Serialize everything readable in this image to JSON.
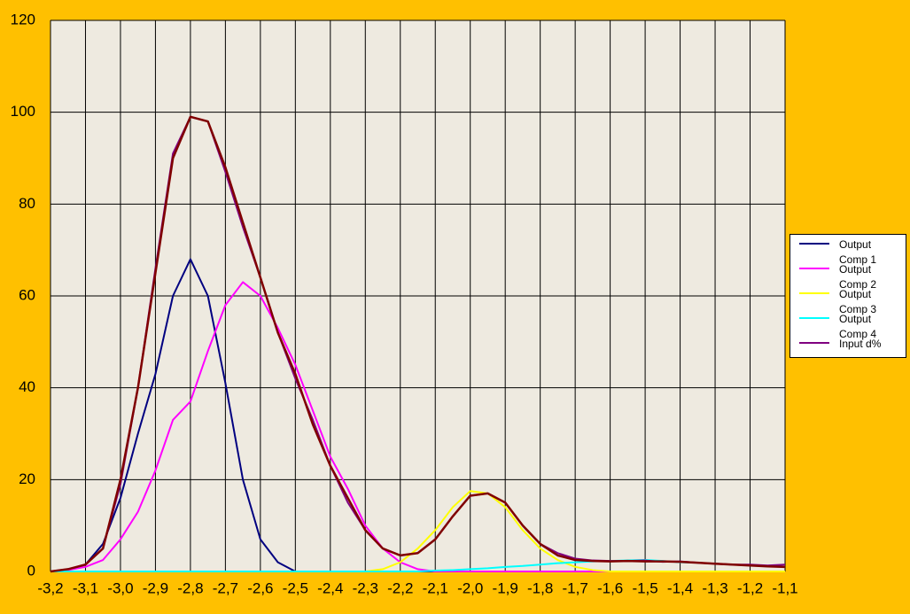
{
  "chart_data": {
    "type": "line",
    "x": [
      -3.2,
      -3.15,
      -3.1,
      -3.05,
      -3.0,
      -2.95,
      -2.9,
      -2.85,
      -2.8,
      -2.75,
      -2.7,
      -2.65,
      -2.6,
      -2.55,
      -2.5,
      -2.45,
      -2.4,
      -2.35,
      -2.3,
      -2.25,
      -2.2,
      -2.15,
      -2.1,
      -2.05,
      -2.0,
      -1.95,
      -1.9,
      -1.85,
      -1.8,
      -1.75,
      -1.7,
      -1.65,
      -1.6,
      -1.55,
      -1.5,
      -1.45,
      -1.4,
      -1.35,
      -1.3,
      -1.25,
      -1.2,
      -1.15,
      -1.1
    ],
    "series": [
      {
        "name": "Output Comp 1",
        "color": "#000080",
        "values": [
          0,
          0.3,
          1.5,
          6,
          16,
          30,
          43,
          60,
          68,
          60,
          41,
          20,
          7,
          2,
          0,
          0,
          0,
          0,
          0,
          0,
          0,
          0,
          0,
          0,
          0,
          0,
          0,
          0,
          0,
          0,
          0,
          0,
          0,
          0,
          0,
          0,
          0,
          0,
          0,
          0,
          0,
          0,
          0
        ]
      },
      {
        "name": "Output Comp 2",
        "color": "#ff00ff",
        "values": [
          0,
          0.3,
          1,
          2.5,
          7,
          13,
          22,
          33,
          37,
          48,
          58,
          63,
          60,
          53,
          45,
          35,
          25,
          18,
          10,
          5,
          2,
          0.5,
          0,
          0,
          0,
          0,
          0,
          0,
          0,
          0,
          0,
          0,
          0,
          0,
          0,
          0,
          0,
          0,
          0,
          0,
          0,
          0,
          0
        ]
      },
      {
        "name": "Output Comp 3",
        "color": "#ffff00",
        "values": [
          0,
          0,
          0,
          0,
          0,
          0,
          0,
          0,
          0,
          0,
          0,
          0,
          0,
          0,
          0,
          0,
          0,
          0,
          0,
          0.5,
          2,
          5,
          9,
          14,
          17.5,
          17,
          14,
          9,
          5,
          2.5,
          1,
          0.3,
          0,
          0,
          0,
          0,
          0,
          0,
          0,
          0,
          0,
          0,
          0
        ]
      },
      {
        "name": "Output Comp 4",
        "color": "#00ffff",
        "values": [
          0,
          0,
          0,
          0,
          0,
          0,
          0,
          0,
          0,
          0,
          0,
          0,
          0,
          0,
          0,
          0,
          0,
          0,
          0,
          0,
          0,
          0,
          0.2,
          0.3,
          0.5,
          0.7,
          1,
          1.2,
          1.5,
          1.8,
          2,
          2.2,
          2.3,
          2.4,
          2.5,
          2.3,
          2,
          1.9,
          1.7,
          1.5,
          1.3,
          1.1,
          1
        ]
      },
      {
        "name": "Input d%",
        "color": "#800080",
        "values": [
          0,
          0.5,
          1.5,
          5,
          19,
          40,
          66,
          91,
          99,
          98,
          87,
          75,
          64,
          52,
          42,
          33,
          23,
          15,
          9,
          5,
          3.5,
          4,
          7,
          12,
          16.5,
          17,
          15,
          10,
          6,
          4,
          2.8,
          2.4,
          2.3,
          2.3,
          2.4,
          2.1,
          2.2,
          1.9,
          1.7,
          1.5,
          1.5,
          1.3,
          1.5
        ]
      },
      {
        "color": "#800000",
        "values": [
          0,
          0.5,
          1.5,
          5,
          20,
          40,
          65,
          90,
          99,
          98,
          88,
          76,
          64,
          52,
          43,
          32,
          23,
          16,
          9,
          5,
          3.5,
          4,
          7,
          12,
          16.5,
          17,
          15,
          10,
          6,
          3.5,
          2.5,
          2.3,
          2.2,
          2.3,
          2.2,
          2.2,
          2.1,
          1.9,
          1.7,
          1.5,
          1.3,
          1.1,
          1
        ]
      }
    ],
    "xlim": [
      -3.2,
      -1.1
    ],
    "ylim": [
      0,
      120
    ],
    "yticks": [
      0,
      20,
      40,
      60,
      80,
      100,
      120
    ],
    "xticks": [
      {
        "value": -3.2,
        "label": "-3,2"
      },
      {
        "value": -3.1,
        "label": "-3,1"
      },
      {
        "value": -3.0,
        "label": "-3,0"
      },
      {
        "value": -2.9,
        "label": "-2,9"
      },
      {
        "value": -2.8,
        "label": "-2,8"
      },
      {
        "value": -2.7,
        "label": "-2,7"
      },
      {
        "value": -2.6,
        "label": "-2,6"
      },
      {
        "value": -2.5,
        "label": "-2,5"
      },
      {
        "value": -2.4,
        "label": "-2,4"
      },
      {
        "value": -2.3,
        "label": "-2,3"
      },
      {
        "value": -2.2,
        "label": "-2,2"
      },
      {
        "value": -2.1,
        "label": "-2,1"
      },
      {
        "value": -2.0,
        "label": "-2,0"
      },
      {
        "value": -1.9,
        "label": "-1,9"
      },
      {
        "value": -1.8,
        "label": "-1,8"
      },
      {
        "value": -1.7,
        "label": "-1,7"
      },
      {
        "value": -1.6,
        "label": "-1,6"
      },
      {
        "value": -1.5,
        "label": "-1,5"
      },
      {
        "value": -1.4,
        "label": "-1,4"
      },
      {
        "value": -1.3,
        "label": "-1,3"
      },
      {
        "value": -1.2,
        "label": "-1,2"
      },
      {
        "value": -1.1,
        "label": "-1,1"
      }
    ],
    "grid": true,
    "legend": "right"
  }
}
